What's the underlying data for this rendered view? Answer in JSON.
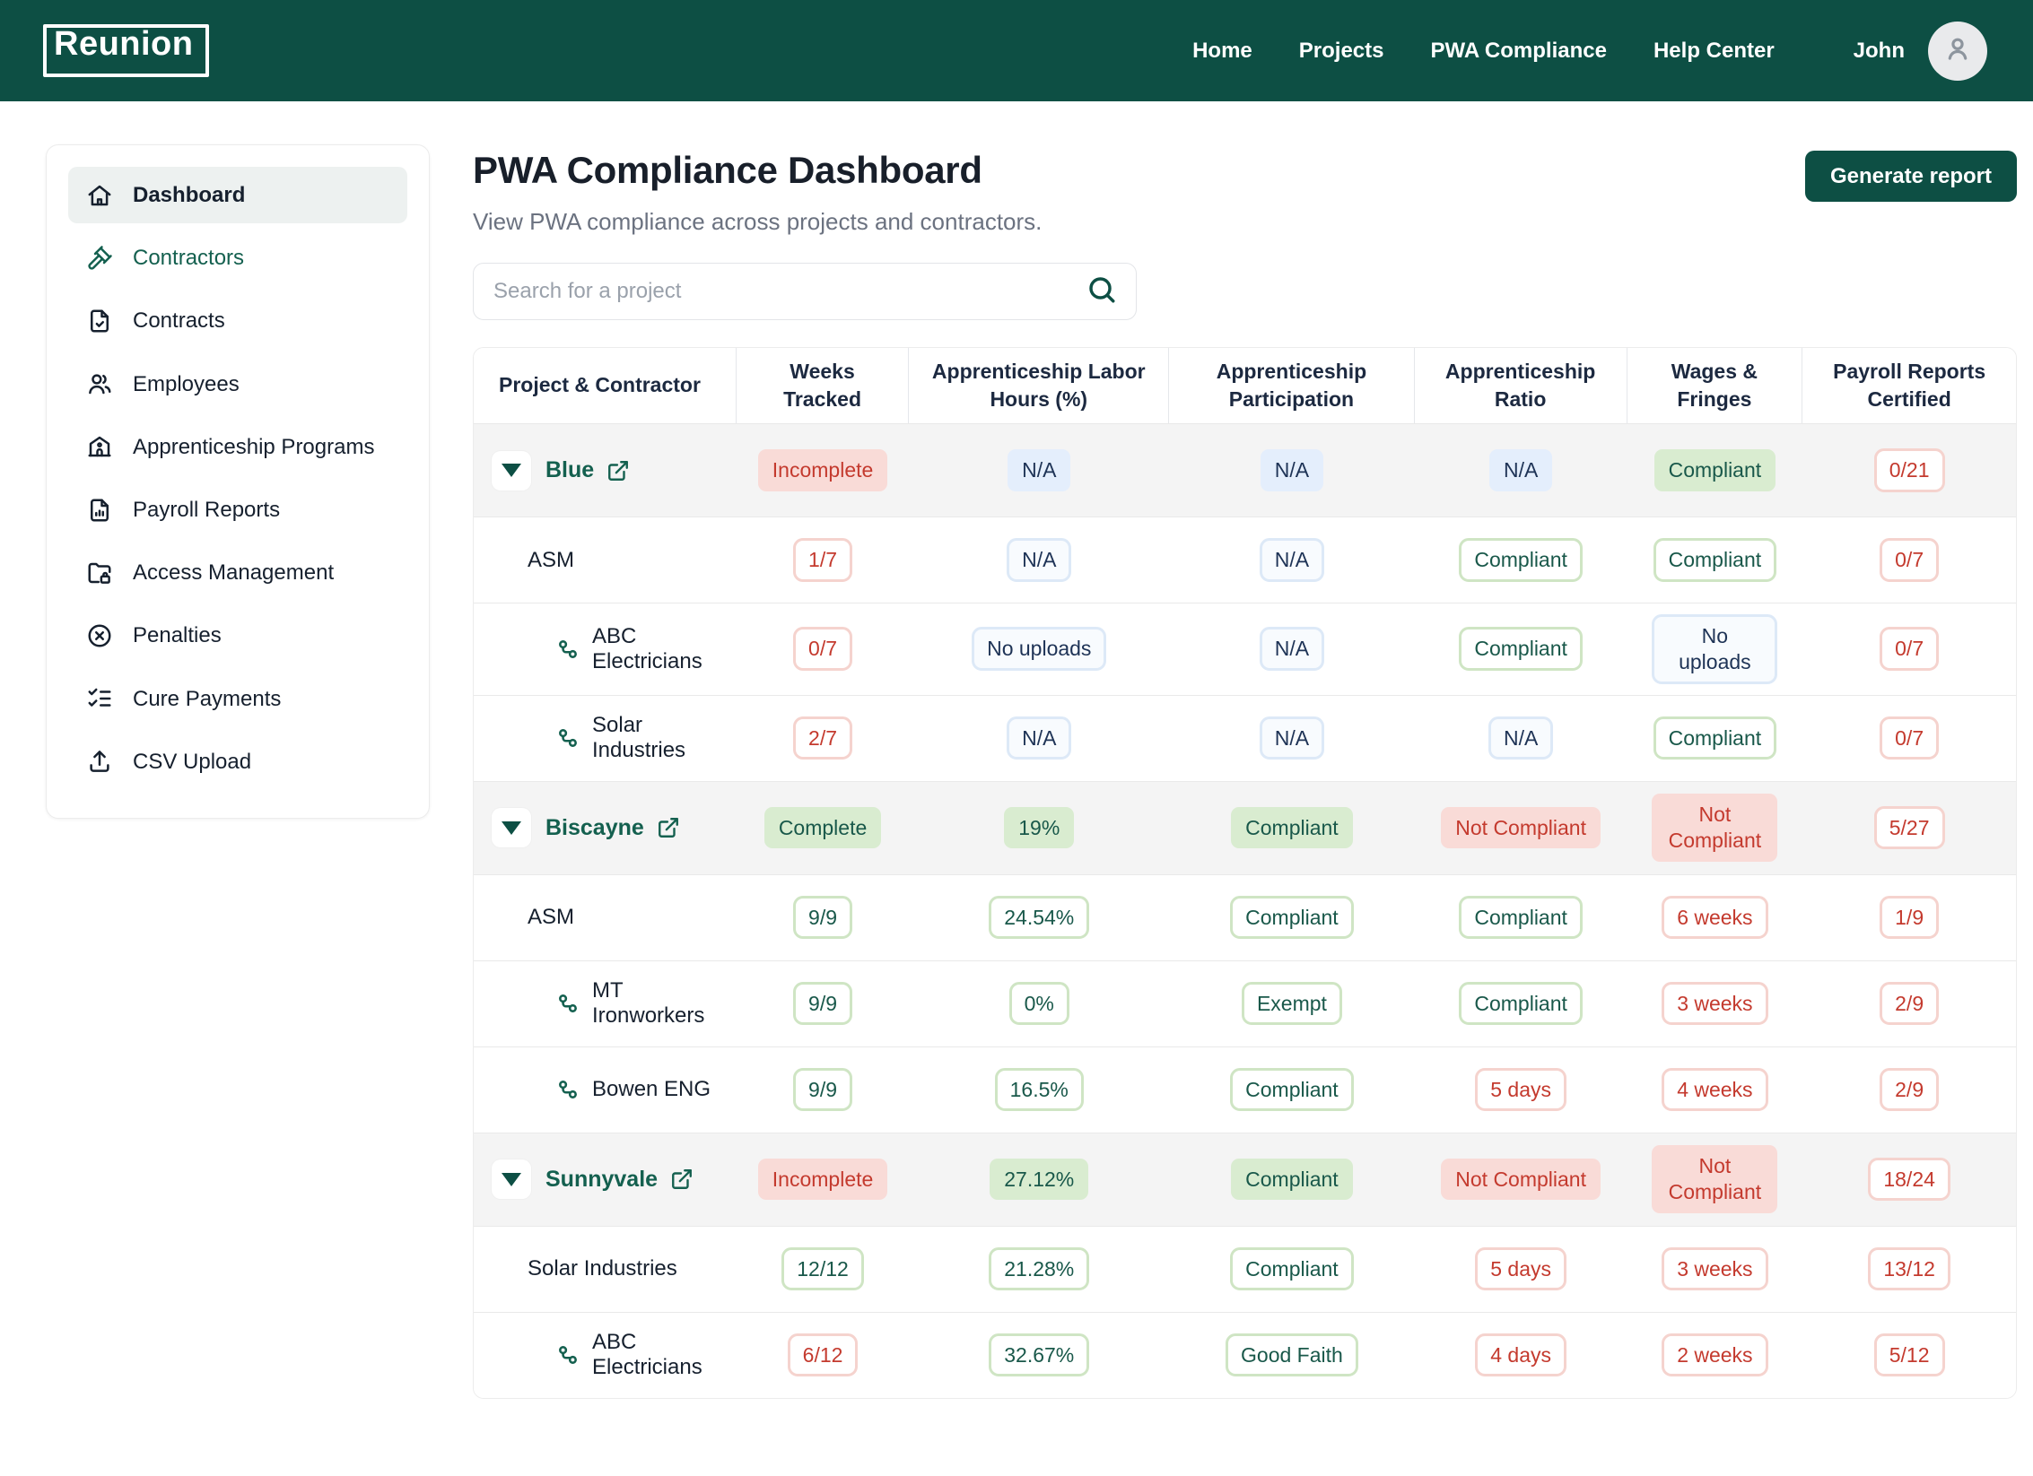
{
  "brand": {
    "logo_text": "Reunion"
  },
  "navbar": {
    "links": [
      "Home",
      "Projects",
      "PWA Compliance",
      "Help Center"
    ],
    "user_name": "John",
    "avatar_icon": "user-icon"
  },
  "sidebar": {
    "items": [
      {
        "label": "Dashboard",
        "icon": "home-icon",
        "active": true
      },
      {
        "label": "Contractors",
        "icon": "gavel-icon",
        "accent": true
      },
      {
        "label": "Contracts",
        "icon": "file-check-icon"
      },
      {
        "label": "Employees",
        "icon": "users-icon"
      },
      {
        "label": "Apprenticeship Programs",
        "icon": "school-icon"
      },
      {
        "label": "Payroll Reports",
        "icon": "file-chart-icon"
      },
      {
        "label": "Access Management",
        "icon": "folder-lock-icon"
      },
      {
        "label": "Penalties",
        "icon": "circle-x-icon"
      },
      {
        "label": "Cure Payments",
        "icon": "list-checks-icon"
      },
      {
        "label": "CSV Upload",
        "icon": "upload-icon"
      }
    ]
  },
  "page": {
    "title": "PWA Compliance Dashboard",
    "subtitle": "View PWA compliance across projects and contractors.",
    "generate_report_label": "Generate report",
    "search_placeholder": "Search for a project",
    "search_icon": "search-icon"
  },
  "table": {
    "columns": [
      "Project & Contractor",
      "Weeks Tracked",
      "Apprenticeship Labor Hours (%)",
      "Apprenticeship Participation",
      "Apprenticeship Ratio",
      "Wages & Fringes",
      "Payroll Reports Certified"
    ],
    "rows": [
      {
        "type": "project",
        "name": "Blue",
        "icons": [
          "collapse-triangle-icon",
          "external-link-icon"
        ],
        "cells": [
          {
            "text": "Incomplete",
            "style": "red-fill"
          },
          {
            "text": "N/A",
            "style": "blue-fill"
          },
          {
            "text": "N/A",
            "style": "blue-fill"
          },
          {
            "text": "N/A",
            "style": "blue-fill"
          },
          {
            "text": "Compliant",
            "style": "green-fill"
          },
          {
            "text": "0/21",
            "style": "red-outline"
          }
        ]
      },
      {
        "type": "contractor",
        "name": "ASM",
        "cells": [
          {
            "text": "1/7",
            "style": "red-outline"
          },
          {
            "text": "N/A",
            "style": "blue-outline"
          },
          {
            "text": "N/A",
            "style": "blue-outline"
          },
          {
            "text": "Compliant",
            "style": "green-outline"
          },
          {
            "text": "Compliant",
            "style": "green-outline"
          },
          {
            "text": "0/7",
            "style": "red-outline"
          }
        ]
      },
      {
        "type": "subcontractor",
        "name": "ABC Electricians",
        "icons": [
          "chain-link-icon"
        ],
        "cells": [
          {
            "text": "0/7",
            "style": "red-outline"
          },
          {
            "text": "No uploads",
            "style": "blue-outline"
          },
          {
            "text": "N/A",
            "style": "blue-outline"
          },
          {
            "text": "Compliant",
            "style": "green-outline"
          },
          {
            "text": "No uploads",
            "style": "blue-outline"
          },
          {
            "text": "0/7",
            "style": "red-outline"
          }
        ]
      },
      {
        "type": "subcontractor",
        "name": "Solar Industries",
        "icons": [
          "chain-link-icon"
        ],
        "cells": [
          {
            "text": "2/7",
            "style": "red-outline"
          },
          {
            "text": "N/A",
            "style": "blue-outline"
          },
          {
            "text": "N/A",
            "style": "blue-outline"
          },
          {
            "text": "N/A",
            "style": "blue-outline"
          },
          {
            "text": "Compliant",
            "style": "green-outline"
          },
          {
            "text": "0/7",
            "style": "red-outline"
          }
        ]
      },
      {
        "type": "project",
        "name": "Biscayne",
        "icons": [
          "collapse-triangle-icon",
          "external-link-icon"
        ],
        "cells": [
          {
            "text": "Complete",
            "style": "green-fill"
          },
          {
            "text": "19%",
            "style": "green-fill"
          },
          {
            "text": "Compliant",
            "style": "green-fill"
          },
          {
            "text": "Not Compliant",
            "style": "red-fill"
          },
          {
            "text": "Not Compliant",
            "style": "red-fill"
          },
          {
            "text": "5/27",
            "style": "red-outline"
          }
        ]
      },
      {
        "type": "contractor",
        "name": "ASM",
        "cells": [
          {
            "text": "9/9",
            "style": "green-outline"
          },
          {
            "text": "24.54%",
            "style": "green-outline"
          },
          {
            "text": "Compliant",
            "style": "green-outline"
          },
          {
            "text": "Compliant",
            "style": "green-outline"
          },
          {
            "text": "6 weeks",
            "style": "red-outline"
          },
          {
            "text": "1/9",
            "style": "red-outline"
          }
        ]
      },
      {
        "type": "subcontractor",
        "name": "MT Ironworkers",
        "icons": [
          "chain-link-icon"
        ],
        "cells": [
          {
            "text": "9/9",
            "style": "green-outline"
          },
          {
            "text": "0%",
            "style": "green-outline"
          },
          {
            "text": "Exempt",
            "style": "green-outline"
          },
          {
            "text": "Compliant",
            "style": "green-outline"
          },
          {
            "text": "3 weeks",
            "style": "red-outline"
          },
          {
            "text": "2/9",
            "style": "red-outline"
          }
        ]
      },
      {
        "type": "subcontractor",
        "name": "Bowen ENG",
        "icons": [
          "chain-link-icon"
        ],
        "cells": [
          {
            "text": "9/9",
            "style": "green-outline"
          },
          {
            "text": "16.5%",
            "style": "green-outline"
          },
          {
            "text": "Compliant",
            "style": "green-outline"
          },
          {
            "text": "5 days",
            "style": "red-outline"
          },
          {
            "text": "4 weeks",
            "style": "red-outline"
          },
          {
            "text": "2/9",
            "style": "red-outline"
          }
        ]
      },
      {
        "type": "project",
        "name": "Sunnyvale",
        "icons": [
          "collapse-triangle-icon",
          "external-link-icon"
        ],
        "cells": [
          {
            "text": "Incomplete",
            "style": "red-fill"
          },
          {
            "text": "27.12%",
            "style": "green-fill"
          },
          {
            "text": "Compliant",
            "style": "green-fill"
          },
          {
            "text": "Not Compliant",
            "style": "red-fill"
          },
          {
            "text": "Not Compliant",
            "style": "red-fill"
          },
          {
            "text": "18/24",
            "style": "red-outline"
          }
        ]
      },
      {
        "type": "contractor",
        "name": "Solar Industries",
        "cells": [
          {
            "text": "12/12",
            "style": "green-outline"
          },
          {
            "text": "21.28%",
            "style": "green-outline"
          },
          {
            "text": "Compliant",
            "style": "green-outline"
          },
          {
            "text": "5 days",
            "style": "red-outline"
          },
          {
            "text": "3 weeks",
            "style": "red-outline"
          },
          {
            "text": "13/12",
            "style": "red-outline"
          }
        ]
      },
      {
        "type": "subcontractor",
        "name": "ABC Electricians",
        "icons": [
          "chain-link-icon"
        ],
        "cells": [
          {
            "text": "6/12",
            "style": "red-outline"
          },
          {
            "text": "32.67%",
            "style": "green-outline"
          },
          {
            "text": "Good Faith",
            "style": "green-outline"
          },
          {
            "text": "4 days",
            "style": "red-outline"
          },
          {
            "text": "2 weeks",
            "style": "red-outline"
          },
          {
            "text": "5/12",
            "style": "red-outline"
          }
        ]
      }
    ]
  },
  "colors": {
    "navbar_bg": "#0d4f44",
    "accent_teal": "#14604f",
    "project_row_bg": "#f4f4f4",
    "badge_red_text": "#c43a2e",
    "badge_red_bg": "#f9dbd7",
    "badge_red_border": "#f5d3ce",
    "badge_green_text": "#19584a",
    "badge_green_bg": "#d9ecd0",
    "badge_green_border": "#cfe5c4",
    "badge_blue_text": "#1e3356",
    "badge_blue_bg": "#e4eefc",
    "badge_blue_border": "#dde9f7"
  }
}
